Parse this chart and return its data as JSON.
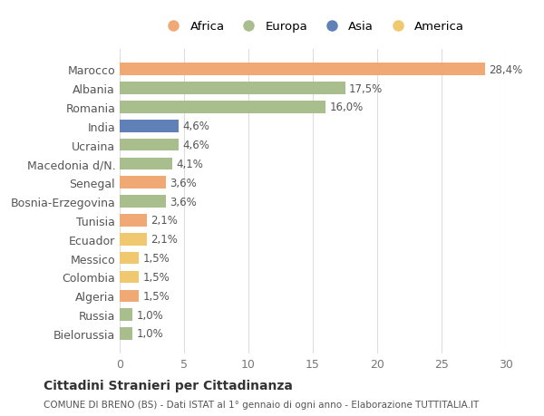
{
  "countries": [
    "Marocco",
    "Albania",
    "Romania",
    "India",
    "Ucraina",
    "Macedonia d/N.",
    "Senegal",
    "Bosnia-Erzegovina",
    "Tunisia",
    "Ecuador",
    "Messico",
    "Colombia",
    "Algeria",
    "Russia",
    "Bielorussia"
  ],
  "values": [
    28.4,
    17.5,
    16.0,
    4.6,
    4.6,
    4.1,
    3.6,
    3.6,
    2.1,
    2.1,
    1.5,
    1.5,
    1.5,
    1.0,
    1.0
  ],
  "labels": [
    "28,4%",
    "17,5%",
    "16,0%",
    "4,6%",
    "4,6%",
    "4,1%",
    "3,6%",
    "3,6%",
    "2,1%",
    "2,1%",
    "1,5%",
    "1,5%",
    "1,5%",
    "1,0%",
    "1,0%"
  ],
  "bar_colors": [
    "#F0A875",
    "#A8BE8C",
    "#A8BE8C",
    "#6080B8",
    "#A8BE8C",
    "#A8BE8C",
    "#F0A875",
    "#A8BE8C",
    "#F0A875",
    "#F0C870",
    "#F0C870",
    "#F0C870",
    "#F0A875",
    "#A8BE8C",
    "#A8BE8C"
  ],
  "legend_names": [
    "Africa",
    "Europa",
    "Asia",
    "America"
  ],
  "legend_colors": [
    "#F0A875",
    "#A8BE8C",
    "#6080B8",
    "#F0C870"
  ],
  "title": "Cittadini Stranieri per Cittadinanza",
  "subtitle": "COMUNE DI BRENO (BS) - Dati ISTAT al 1° gennaio di ogni anno - Elaborazione TUTTITALIA.IT",
  "xlim": [
    0,
    30
  ],
  "xticks": [
    0,
    5,
    10,
    15,
    20,
    25,
    30
  ],
  "background_color": "#ffffff",
  "grid_color": "#dddddd"
}
